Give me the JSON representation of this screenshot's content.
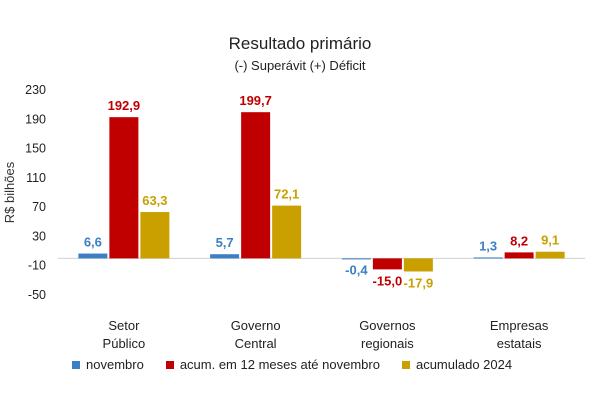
{
  "chart_data": {
    "type": "bar",
    "title": "Resultado primário",
    "subtitle": "(-) Superávit  (+) Déficit",
    "ylabel": "R$ bilhões",
    "xlabel": "",
    "ylim": [
      -50,
      230
    ],
    "yticks": [
      "230",
      "190",
      "150",
      "110",
      "70",
      "30",
      "-10",
      "-50"
    ],
    "ytick_values": [
      230,
      190,
      150,
      110,
      70,
      30,
      -10,
      -50
    ],
    "grid": false,
    "legend_position": "bottom",
    "categories": [
      [
        "Setor",
        "Público"
      ],
      [
        "Governo",
        "Central"
      ],
      [
        "Governos",
        "regionais"
      ],
      [
        "Empresas",
        "estatais"
      ]
    ],
    "series": [
      {
        "name": "novembro",
        "color": "#3b7fc4",
        "values": [
          6.6,
          5.7,
          -0.4,
          1.3
        ],
        "labels": [
          "6,6",
          "5,7",
          "-0,4",
          "1,3"
        ]
      },
      {
        "name": "acum. em 12 meses até novembro",
        "color": "#c00000",
        "values": [
          192.9,
          199.7,
          -15.0,
          8.2
        ],
        "labels": [
          "192,9",
          "199,7",
          "-15,0",
          "8,2"
        ]
      },
      {
        "name": "acumulado 2024",
        "color": "#c9a000",
        "values": [
          63.3,
          72.1,
          -17.9,
          9.1
        ],
        "labels": [
          "63,3",
          "72,1",
          "-17,9",
          "9,1"
        ]
      }
    ]
  }
}
